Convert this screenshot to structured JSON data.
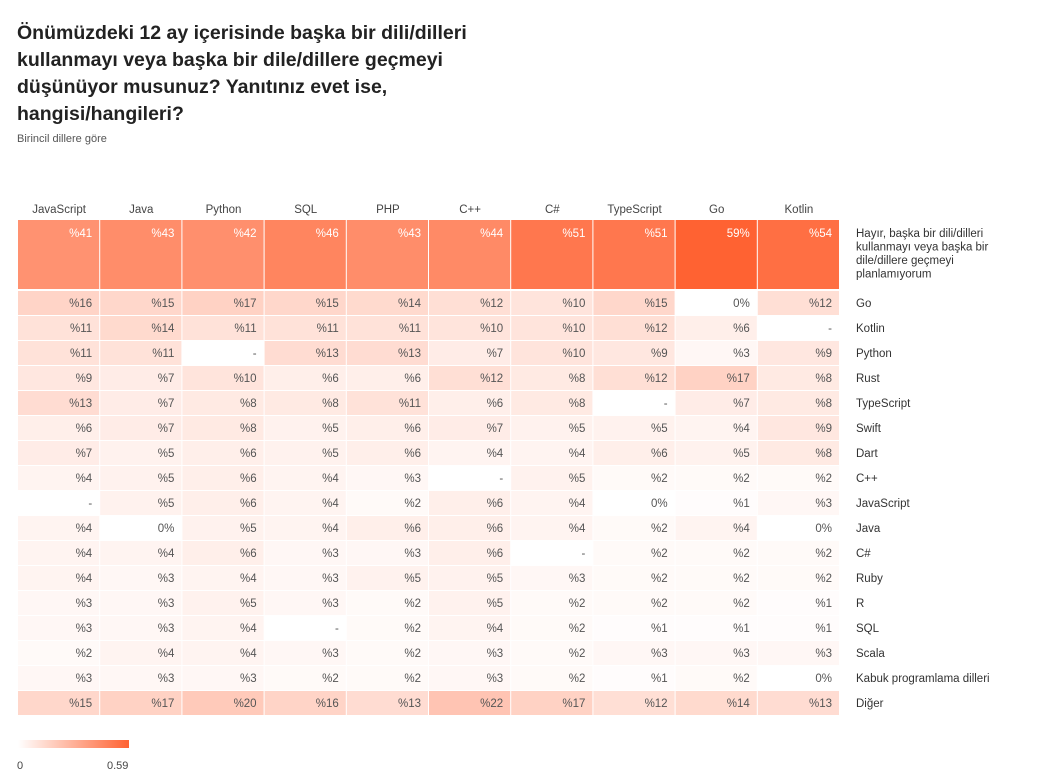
{
  "title": "Önümüzdeki 12 ay içerisinde başka bir dili/dilleri kullanmayı veya başka bir dile/dillere geçmeyi düşünüyor musunuz? Yanıtınız evet ise, hangisi/hangileri?",
  "subtitle": "Birincil dillere göre",
  "legend": {
    "min_label": "0",
    "max_label": "0.59",
    "min_color": "#ffffff",
    "max_color": "#ff6232"
  },
  "chart_data": {
    "type": "heatmap",
    "columns": [
      "JavaScript",
      "Java",
      "Python",
      "SQL",
      "PHP",
      "C++",
      "C#",
      "TypeScript",
      "Go",
      "Kotlin"
    ],
    "rows": [
      "Hayır, başka bir dili/dilleri kullanmayı veya başka bir dile/dillere geçmeyi planlamıyorum",
      "Go",
      "Kotlin",
      "Python",
      "Rust",
      "TypeScript",
      "Swift",
      "Dart",
      "C++",
      "JavaScript",
      "Java",
      "C#",
      "Ruby",
      "R",
      "SQL",
      "Scala",
      "Kabuk programlama dilleri",
      "Diğer"
    ],
    "labels": [
      [
        "%41",
        "%43",
        "%42",
        "%46",
        "%43",
        "%44",
        "%51",
        "%51",
        "59%",
        "%54"
      ],
      [
        "%16",
        "%15",
        "%17",
        "%15",
        "%14",
        "%12",
        "%10",
        "%15",
        "0%",
        "%12"
      ],
      [
        "%11",
        "%14",
        "%11",
        "%11",
        "%11",
        "%10",
        "%10",
        "%12",
        "%6",
        "-"
      ],
      [
        "%11",
        "%11",
        "-",
        "%13",
        "%13",
        "%7",
        "%10",
        "%9",
        "%3",
        "%9"
      ],
      [
        "%9",
        "%7",
        "%10",
        "%6",
        "%6",
        "%12",
        "%8",
        "%12",
        "%17",
        "%8"
      ],
      [
        "%13",
        "%7",
        "%8",
        "%8",
        "%11",
        "%6",
        "%8",
        "-",
        "%7",
        "%8"
      ],
      [
        "%6",
        "%7",
        "%8",
        "%5",
        "%6",
        "%7",
        "%5",
        "%5",
        "%4",
        "%9"
      ],
      [
        "%7",
        "%5",
        "%6",
        "%5",
        "%6",
        "%4",
        "%4",
        "%6",
        "%5",
        "%8"
      ],
      [
        "%4",
        "%5",
        "%6",
        "%4",
        "%3",
        "-",
        "%5",
        "%2",
        "%2",
        "%2"
      ],
      [
        "-",
        "%5",
        "%6",
        "%4",
        "%2",
        "%6",
        "%4",
        "0%",
        "%1",
        "%3"
      ],
      [
        "%4",
        "0%",
        "%5",
        "%4",
        "%6",
        "%6",
        "%4",
        "%2",
        "%4",
        "0%"
      ],
      [
        "%4",
        "%4",
        "%6",
        "%3",
        "%3",
        "%6",
        "-",
        "%2",
        "%2",
        "%2"
      ],
      [
        "%4",
        "%3",
        "%4",
        "%3",
        "%5",
        "%5",
        "%3",
        "%2",
        "%2",
        "%2"
      ],
      [
        "%3",
        "%3",
        "%5",
        "%3",
        "%2",
        "%5",
        "%2",
        "%2",
        "%2",
        "%1"
      ],
      [
        "%3",
        "%3",
        "%4",
        "-",
        "%2",
        "%4",
        "%2",
        "%1",
        "%1",
        "%1"
      ],
      [
        "%2",
        "%4",
        "%4",
        "%3",
        "%2",
        "%3",
        "%2",
        "%3",
        "%3",
        "%3"
      ],
      [
        "%3",
        "%3",
        "%3",
        "%2",
        "%2",
        "%3",
        "%2",
        "%1",
        "%2",
        "0%"
      ],
      [
        "%15",
        "%17",
        "%20",
        "%16",
        "%13",
        "%22",
        "%17",
        "%12",
        "%14",
        "%13"
      ]
    ],
    "values": [
      [
        0.41,
        0.43,
        0.42,
        0.46,
        0.43,
        0.44,
        0.51,
        0.51,
        0.59,
        0.54
      ],
      [
        0.16,
        0.15,
        0.17,
        0.15,
        0.14,
        0.12,
        0.1,
        0.15,
        0,
        0.12
      ],
      [
        0.11,
        0.14,
        0.11,
        0.11,
        0.11,
        0.1,
        0.1,
        0.12,
        0.06,
        null
      ],
      [
        0.11,
        0.11,
        null,
        0.13,
        0.13,
        0.07,
        0.1,
        0.09,
        0.03,
        0.09
      ],
      [
        0.09,
        0.07,
        0.1,
        0.06,
        0.06,
        0.12,
        0.08,
        0.12,
        0.17,
        0.08
      ],
      [
        0.13,
        0.07,
        0.08,
        0.08,
        0.11,
        0.06,
        0.08,
        null,
        0.07,
        0.08
      ],
      [
        0.06,
        0.07,
        0.08,
        0.05,
        0.06,
        0.07,
        0.05,
        0.05,
        0.04,
        0.09
      ],
      [
        0.07,
        0.05,
        0.06,
        0.05,
        0.06,
        0.04,
        0.04,
        0.06,
        0.05,
        0.08
      ],
      [
        0.04,
        0.05,
        0.06,
        0.04,
        0.03,
        null,
        0.05,
        0.02,
        0.02,
        0.02
      ],
      [
        null,
        0.05,
        0.06,
        0.04,
        0.02,
        0.06,
        0.04,
        0,
        0.01,
        0.03
      ],
      [
        0.04,
        0,
        0.05,
        0.04,
        0.06,
        0.06,
        0.04,
        0.02,
        0.04,
        0
      ],
      [
        0.04,
        0.04,
        0.06,
        0.03,
        0.03,
        0.06,
        null,
        0.02,
        0.02,
        0.02
      ],
      [
        0.04,
        0.03,
        0.04,
        0.03,
        0.05,
        0.05,
        0.03,
        0.02,
        0.02,
        0.02
      ],
      [
        0.03,
        0.03,
        0.05,
        0.03,
        0.02,
        0.05,
        0.02,
        0.02,
        0.02,
        0.01
      ],
      [
        0.03,
        0.03,
        0.04,
        null,
        0.02,
        0.04,
        0.02,
        0.01,
        0.01,
        0.01
      ],
      [
        0.02,
        0.04,
        0.04,
        0.03,
        0.02,
        0.03,
        0.02,
        0.03,
        0.03,
        0.03
      ],
      [
        0.03,
        0.03,
        0.03,
        0.02,
        0.02,
        0.03,
        0.02,
        0.01,
        0.02,
        0
      ],
      [
        0.15,
        0.17,
        0.2,
        0.16,
        0.13,
        0.22,
        0.17,
        0.12,
        0.14,
        0.13
      ]
    ],
    "value_range": [
      0,
      0.59
    ],
    "grid": false,
    "legend_placement": "bottom-left"
  }
}
